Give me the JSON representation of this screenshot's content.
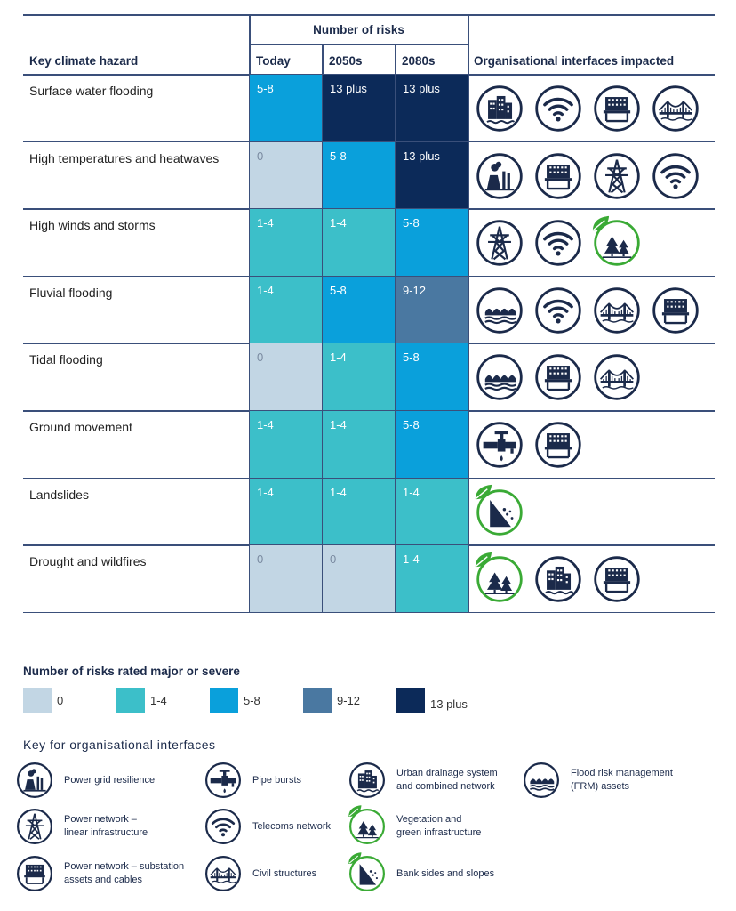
{
  "colors": {
    "0": "#c2d6e4",
    "1-4": "#3cbfc9",
    "5-8": "#0aa0db",
    "9-12": "#4a78a1",
    "13plus": "#0c2a59",
    "leaf": "#3aaa35",
    "navy": "#1b2a4a"
  },
  "header": {
    "number_of_risks": "Number of risks",
    "hazard_col": "Key climate hazard",
    "today": "Today",
    "y2050": "2050s",
    "y2080": "2080s",
    "interfaces": "Organisational interfaces impacted"
  },
  "rows": [
    {
      "hazard": "Surface water flooding",
      "today": "5-8",
      "y2050": "13 plus",
      "y2080": "13 plus",
      "today_level": "5-8",
      "y2050_level": "13plus",
      "y2080_level": "13plus",
      "icons": [
        "urban-drainage-icon",
        "telecoms-icon",
        "substation-icon",
        "civil-structures-icon"
      ]
    },
    {
      "hazard": "High temperatures and heatwaves",
      "today": "0",
      "y2050": "5-8",
      "y2080": "13 plus",
      "today_level": "0",
      "y2050_level": "5-8",
      "y2080_level": "13plus",
      "icons": [
        "power-grid-icon",
        "substation-icon",
        "pylon-icon",
        "telecoms-icon"
      ]
    },
    {
      "hazard": "High winds and storms",
      "today": "1-4",
      "y2050": "1-4",
      "y2080": "5-8",
      "today_level": "1-4",
      "y2050_level": "1-4",
      "y2080_level": "5-8",
      "icons": [
        "pylon-icon",
        "telecoms-icon",
        "vegetation-icon"
      ]
    },
    {
      "hazard": "Fluvial flooding",
      "today": "1-4",
      "y2050": "5-8",
      "y2080": "9-12",
      "today_level": "1-4",
      "y2050_level": "5-8",
      "y2080_level": "9-12",
      "icons": [
        "flood-risk-icon",
        "telecoms-icon",
        "civil-structures-icon",
        "substation-icon"
      ]
    },
    {
      "hazard": "Tidal flooding",
      "today": "0",
      "y2050": "1-4",
      "y2080": "5-8",
      "today_level": "0",
      "y2050_level": "1-4",
      "y2080_level": "5-8",
      "icons": [
        "flood-risk-icon",
        "substation-icon",
        "civil-structures-icon"
      ]
    },
    {
      "hazard": "Ground movement",
      "today": "1-4",
      "y2050": "1-4",
      "y2080": "5-8",
      "today_level": "1-4",
      "y2050_level": "1-4",
      "y2080_level": "5-8",
      "icons": [
        "pipe-bursts-icon",
        "substation-icon"
      ]
    },
    {
      "hazard": "Landslides",
      "today": "1-4",
      "y2050": "1-4",
      "y2080": "1-4",
      "today_level": "1-4",
      "y2050_level": "1-4",
      "y2080_level": "1-4",
      "icons": [
        "bank-slopes-icon"
      ]
    },
    {
      "hazard": "Drought and wildfires",
      "today": "0",
      "y2050": "0",
      "y2080": "1-4",
      "today_level": "0",
      "y2050_level": "0",
      "y2080_level": "1-4",
      "icons": [
        "vegetation-icon",
        "urban-drainage-icon",
        "substation-icon"
      ]
    }
  ],
  "legend": {
    "title": "Number of risks rated major or severe",
    "items": [
      {
        "level": "0",
        "label": "0"
      },
      {
        "level": "1-4",
        "label": "1-4"
      },
      {
        "level": "5-8",
        "label": "5-8"
      },
      {
        "level": "9-12",
        "label": "9-12"
      },
      {
        "level": "13plus",
        "label": "13 plus"
      }
    ]
  },
  "key": {
    "title": "Key for organisational interfaces",
    "items": [
      {
        "icon": "power-grid-icon",
        "label": "Power grid resilience"
      },
      {
        "icon": "pylon-icon",
        "label": "Power network –\nlinear infrastructure"
      },
      {
        "icon": "substation-icon",
        "label": "Power network – substation\nassets and cables"
      },
      {
        "icon": "pipe-bursts-icon",
        "label": "Pipe bursts"
      },
      {
        "icon": "telecoms-icon",
        "label": "Telecoms network"
      },
      {
        "icon": "civil-structures-icon",
        "label": "Civil structures"
      },
      {
        "icon": "urban-drainage-icon",
        "label": "Urban drainage system\nand combined network"
      },
      {
        "icon": "vegetation-icon",
        "label": "Vegetation and\ngreen infrastructure"
      },
      {
        "icon": "bank-slopes-icon",
        "label": "Bank sides and slopes"
      },
      {
        "icon": "flood-risk-icon",
        "label": "Flood risk management\n(FRM) assets"
      }
    ]
  }
}
